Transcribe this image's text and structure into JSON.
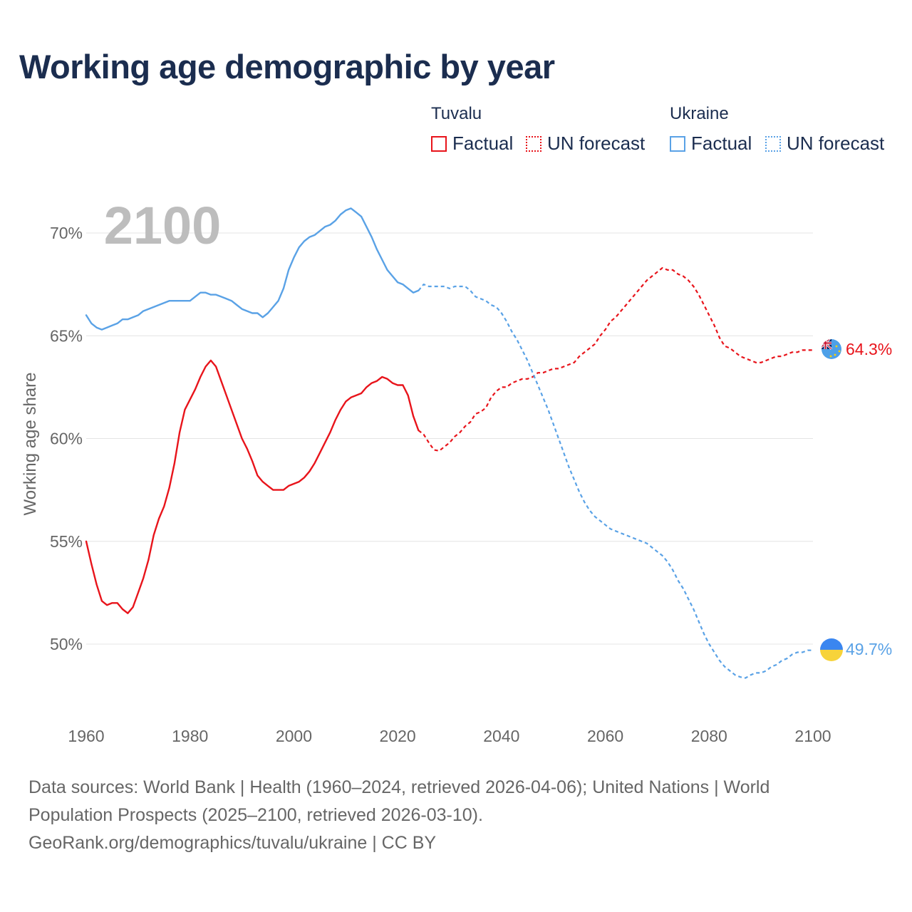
{
  "title": "Working age demographic by year",
  "legend": {
    "groups": [
      {
        "country": "Tuvalu",
        "color": "#e8141b",
        "factual_label": "Factual",
        "forecast_label": "UN forecast"
      },
      {
        "country": "Ukraine",
        "color": "#5aa2e6",
        "factual_label": "Factual",
        "forecast_label": "UN forecast"
      }
    ]
  },
  "year_label": "2100",
  "footer": {
    "line1": "Data sources: World Bank | Health (1960–2024, retrieved 2026-04-06); United Nations | World",
    "line2": "Population Prospects (2025–2100, retrieved 2026-03-10).",
    "line3": "GeoRank.org/demographics/tuvalu/ukraine | CC BY"
  },
  "chart_data": {
    "type": "line",
    "title": "Working age demographic by year",
    "ylabel": "Working age share",
    "xlabel": "",
    "xlim": [
      1960,
      2100
    ],
    "ylim": [
      46.2,
      72.5
    ],
    "x_ticks": [
      1960,
      1980,
      2000,
      2020,
      2040,
      2060,
      2080,
      2100
    ],
    "x_tick_labels": [
      "1960",
      "1980",
      "2000",
      "2020",
      "2040",
      "2060",
      "2080",
      "2100"
    ],
    "y_ticks": [
      50,
      55,
      60,
      65,
      70
    ],
    "y_tick_labels": [
      "50%",
      "55%",
      "60%",
      "65%",
      "70%"
    ],
    "grid": true,
    "factual_end_year": 2024,
    "series": [
      {
        "name": "Tuvalu",
        "color": "#e8141b",
        "end_label": "64.3%",
        "end_value": 64.3,
        "points": [
          [
            1960,
            55.0
          ],
          [
            1961,
            53.9
          ],
          [
            1962,
            52.9
          ],
          [
            1963,
            52.1
          ],
          [
            1964,
            51.9
          ],
          [
            1965,
            52.0
          ],
          [
            1966,
            52.0
          ],
          [
            1967,
            51.7
          ],
          [
            1968,
            51.5
          ],
          [
            1969,
            51.8
          ],
          [
            1970,
            52.5
          ],
          [
            1971,
            53.2
          ],
          [
            1972,
            54.1
          ],
          [
            1973,
            55.3
          ],
          [
            1974,
            56.1
          ],
          [
            1975,
            56.7
          ],
          [
            1976,
            57.6
          ],
          [
            1977,
            58.8
          ],
          [
            1978,
            60.3
          ],
          [
            1979,
            61.4
          ],
          [
            1980,
            61.9
          ],
          [
            1981,
            62.4
          ],
          [
            1982,
            63.0
          ],
          [
            1983,
            63.5
          ],
          [
            1984,
            63.8
          ],
          [
            1985,
            63.5
          ],
          [
            1986,
            62.8
          ],
          [
            1987,
            62.1
          ],
          [
            1988,
            61.4
          ],
          [
            1989,
            60.7
          ],
          [
            1990,
            60.0
          ],
          [
            1991,
            59.5
          ],
          [
            1992,
            58.9
          ],
          [
            1993,
            58.2
          ],
          [
            1994,
            57.9
          ],
          [
            1995,
            57.7
          ],
          [
            1996,
            57.5
          ],
          [
            1997,
            57.5
          ],
          [
            1998,
            57.5
          ],
          [
            1999,
            57.7
          ],
          [
            2000,
            57.8
          ],
          [
            2001,
            57.9
          ],
          [
            2002,
            58.1
          ],
          [
            2003,
            58.4
          ],
          [
            2004,
            58.8
          ],
          [
            2005,
            59.3
          ],
          [
            2006,
            59.8
          ],
          [
            2007,
            60.3
          ],
          [
            2008,
            60.9
          ],
          [
            2009,
            61.4
          ],
          [
            2010,
            61.8
          ],
          [
            2011,
            62.0
          ],
          [
            2012,
            62.1
          ],
          [
            2013,
            62.2
          ],
          [
            2014,
            62.5
          ],
          [
            2015,
            62.7
          ],
          [
            2016,
            62.8
          ],
          [
            2017,
            63.0
          ],
          [
            2018,
            62.9
          ],
          [
            2019,
            62.7
          ],
          [
            2020,
            62.6
          ],
          [
            2021,
            62.6
          ],
          [
            2022,
            62.1
          ],
          [
            2023,
            61.1
          ],
          [
            2024,
            60.4
          ],
          [
            2025,
            60.2
          ],
          [
            2026,
            59.8
          ],
          [
            2027,
            59.45
          ],
          [
            2028,
            59.4
          ],
          [
            2029,
            59.6
          ],
          [
            2030,
            59.8
          ],
          [
            2031,
            60.1
          ],
          [
            2032,
            60.3
          ],
          [
            2033,
            60.6
          ],
          [
            2034,
            60.8
          ],
          [
            2035,
            61.2
          ],
          [
            2036,
            61.3
          ],
          [
            2037,
            61.5
          ],
          [
            2038,
            62.0
          ],
          [
            2039,
            62.3
          ],
          [
            2040,
            62.5
          ],
          [
            2041,
            62.5
          ],
          [
            2042,
            62.7
          ],
          [
            2043,
            62.8
          ],
          [
            2044,
            62.9
          ],
          [
            2045,
            62.9
          ],
          [
            2046,
            63.0
          ],
          [
            2047,
            63.2
          ],
          [
            2048,
            63.2
          ],
          [
            2049,
            63.3
          ],
          [
            2050,
            63.4
          ],
          [
            2051,
            63.4
          ],
          [
            2052,
            63.5
          ],
          [
            2053,
            63.6
          ],
          [
            2054,
            63.7
          ],
          [
            2055,
            64.0
          ],
          [
            2056,
            64.2
          ],
          [
            2057,
            64.4
          ],
          [
            2058,
            64.6
          ],
          [
            2059,
            65.0
          ],
          [
            2060,
            65.3
          ],
          [
            2061,
            65.7
          ],
          [
            2062,
            65.9
          ],
          [
            2063,
            66.2
          ],
          [
            2064,
            66.5
          ],
          [
            2065,
            66.8
          ],
          [
            2066,
            67.1
          ],
          [
            2067,
            67.4
          ],
          [
            2068,
            67.7
          ],
          [
            2069,
            67.9
          ],
          [
            2070,
            68.1
          ],
          [
            2071,
            68.3
          ],
          [
            2072,
            68.2
          ],
          [
            2073,
            68.2
          ],
          [
            2074,
            68.0
          ],
          [
            2075,
            67.9
          ],
          [
            2076,
            67.7
          ],
          [
            2077,
            67.4
          ],
          [
            2078,
            67.0
          ],
          [
            2079,
            66.5
          ],
          [
            2080,
            66.0
          ],
          [
            2081,
            65.5
          ],
          [
            2082,
            64.9
          ],
          [
            2083,
            64.5
          ],
          [
            2084,
            64.4
          ],
          [
            2085,
            64.2
          ],
          [
            2086,
            64.0
          ],
          [
            2087,
            63.9
          ],
          [
            2088,
            63.8
          ],
          [
            2089,
            63.7
          ],
          [
            2090,
            63.7
          ],
          [
            2091,
            63.8
          ],
          [
            2092,
            63.9
          ],
          [
            2093,
            64.0
          ],
          [
            2094,
            64.0
          ],
          [
            2095,
            64.1
          ],
          [
            2096,
            64.2
          ],
          [
            2097,
            64.2
          ],
          [
            2098,
            64.3
          ],
          [
            2099,
            64.3
          ],
          [
            2100,
            64.3
          ]
        ]
      },
      {
        "name": "Ukraine",
        "color": "#5aa2e6",
        "end_label": "49.7%",
        "end_value": 49.7,
        "points": [
          [
            1960,
            66.0
          ],
          [
            1961,
            65.6
          ],
          [
            1962,
            65.4
          ],
          [
            1963,
            65.3
          ],
          [
            1964,
            65.4
          ],
          [
            1965,
            65.5
          ],
          [
            1966,
            65.6
          ],
          [
            1967,
            65.8
          ],
          [
            1968,
            65.8
          ],
          [
            1969,
            65.9
          ],
          [
            1970,
            66.0
          ],
          [
            1971,
            66.2
          ],
          [
            1972,
            66.3
          ],
          [
            1973,
            66.4
          ],
          [
            1974,
            66.5
          ],
          [
            1975,
            66.6
          ],
          [
            1976,
            66.7
          ],
          [
            1977,
            66.7
          ],
          [
            1978,
            66.7
          ],
          [
            1979,
            66.7
          ],
          [
            1980,
            66.7
          ],
          [
            1981,
            66.9
          ],
          [
            1982,
            67.1
          ],
          [
            1983,
            67.1
          ],
          [
            1984,
            67.0
          ],
          [
            1985,
            67.0
          ],
          [
            1986,
            66.9
          ],
          [
            1987,
            66.8
          ],
          [
            1988,
            66.7
          ],
          [
            1989,
            66.5
          ],
          [
            1990,
            66.3
          ],
          [
            1991,
            66.2
          ],
          [
            1992,
            66.1
          ],
          [
            1993,
            66.1
          ],
          [
            1994,
            65.9
          ],
          [
            1995,
            66.1
          ],
          [
            1996,
            66.4
          ],
          [
            1997,
            66.7
          ],
          [
            1998,
            67.3
          ],
          [
            1999,
            68.2
          ],
          [
            2000,
            68.8
          ],
          [
            2001,
            69.3
          ],
          [
            2002,
            69.6
          ],
          [
            2003,
            69.8
          ],
          [
            2004,
            69.9
          ],
          [
            2005,
            70.1
          ],
          [
            2006,
            70.3
          ],
          [
            2007,
            70.4
          ],
          [
            2008,
            70.6
          ],
          [
            2009,
            70.9
          ],
          [
            2010,
            71.1
          ],
          [
            2011,
            71.2
          ],
          [
            2012,
            71.0
          ],
          [
            2013,
            70.8
          ],
          [
            2014,
            70.3
          ],
          [
            2015,
            69.8
          ],
          [
            2016,
            69.2
          ],
          [
            2017,
            68.7
          ],
          [
            2018,
            68.2
          ],
          [
            2019,
            67.9
          ],
          [
            2020,
            67.6
          ],
          [
            2021,
            67.5
          ],
          [
            2022,
            67.3
          ],
          [
            2023,
            67.1
          ],
          [
            2024,
            67.2
          ],
          [
            2025,
            67.5
          ],
          [
            2026,
            67.4
          ],
          [
            2027,
            67.4
          ],
          [
            2028,
            67.4
          ],
          [
            2029,
            67.4
          ],
          [
            2030,
            67.3
          ],
          [
            2031,
            67.4
          ],
          [
            2032,
            67.4
          ],
          [
            2033,
            67.4
          ],
          [
            2034,
            67.2
          ],
          [
            2035,
            66.9
          ],
          [
            2036,
            66.8
          ],
          [
            2037,
            66.7
          ],
          [
            2038,
            66.5
          ],
          [
            2039,
            66.4
          ],
          [
            2040,
            66.1
          ],
          [
            2041,
            65.7
          ],
          [
            2042,
            65.2
          ],
          [
            2043,
            64.8
          ],
          [
            2044,
            64.3
          ],
          [
            2045,
            63.8
          ],
          [
            2046,
            63.2
          ],
          [
            2047,
            62.6
          ],
          [
            2048,
            62.0
          ],
          [
            2049,
            61.4
          ],
          [
            2050,
            60.7
          ],
          [
            2051,
            60.0
          ],
          [
            2052,
            59.3
          ],
          [
            2053,
            58.6
          ],
          [
            2054,
            58.0
          ],
          [
            2055,
            57.4
          ],
          [
            2056,
            56.9
          ],
          [
            2057,
            56.5
          ],
          [
            2058,
            56.2
          ],
          [
            2059,
            56.0
          ],
          [
            2060,
            55.8
          ],
          [
            2061,
            55.6
          ],
          [
            2062,
            55.5
          ],
          [
            2063,
            55.4
          ],
          [
            2064,
            55.3
          ],
          [
            2065,
            55.2
          ],
          [
            2066,
            55.1
          ],
          [
            2067,
            55.0
          ],
          [
            2068,
            54.9
          ],
          [
            2069,
            54.7
          ],
          [
            2070,
            54.5
          ],
          [
            2071,
            54.3
          ],
          [
            2072,
            54.0
          ],
          [
            2073,
            53.6
          ],
          [
            2074,
            53.1
          ],
          [
            2075,
            52.7
          ],
          [
            2076,
            52.2
          ],
          [
            2077,
            51.7
          ],
          [
            2078,
            51.1
          ],
          [
            2079,
            50.5
          ],
          [
            2080,
            50.0
          ],
          [
            2081,
            49.6
          ],
          [
            2082,
            49.2
          ],
          [
            2083,
            48.9
          ],
          [
            2084,
            48.7
          ],
          [
            2085,
            48.5
          ],
          [
            2086,
            48.4
          ],
          [
            2087,
            48.35
          ],
          [
            2088,
            48.5
          ],
          [
            2089,
            48.6
          ],
          [
            2090,
            48.6
          ],
          [
            2091,
            48.7
          ],
          [
            2092,
            48.9
          ],
          [
            2093,
            49.0
          ],
          [
            2094,
            49.2
          ],
          [
            2095,
            49.3
          ],
          [
            2096,
            49.5
          ],
          [
            2097,
            49.6
          ],
          [
            2098,
            49.6
          ],
          [
            2099,
            49.7
          ],
          [
            2100,
            49.7
          ]
        ]
      }
    ]
  }
}
